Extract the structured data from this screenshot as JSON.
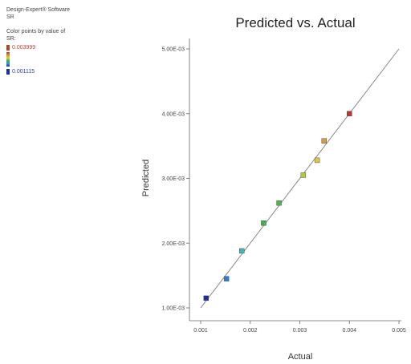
{
  "info": {
    "software": "Design-Expert® Software",
    "response": "SR",
    "color_caption": "Color points by value of",
    "color_variable": "SR:",
    "high_value": "0.003999",
    "low_value": "0.001115",
    "high_color": "#b5432a",
    "low_color": "#1d2aa0"
  },
  "chart_data": {
    "type": "scatter",
    "title": "Predicted vs. Actual",
    "xlabel": "Actual",
    "ylabel": "Predicted",
    "xlim": [
      0.001,
      0.005
    ],
    "ylim": [
      0.001,
      0.005
    ],
    "x_ticks": [
      0.001,
      0.002,
      0.003,
      0.004,
      0.005
    ],
    "x_tick_labels": [
      "0.001",
      "0.002",
      "0.003",
      "0.004",
      "0.005"
    ],
    "y_ticks": [
      0.001,
      0.002,
      0.003,
      0.004,
      0.005
    ],
    "y_tick_labels": [
      "1.00E-03",
      "2.00E-03",
      "3.00E-03",
      "4.00E-03",
      "5.00E-03"
    ],
    "grid": false,
    "reference_line": [
      [
        0.001,
        0.001
      ],
      [
        0.005,
        0.005
      ]
    ],
    "points": [
      {
        "x": 0.00111,
        "y": 0.00115,
        "color": "#1d2aa0"
      },
      {
        "x": 0.00152,
        "y": 0.00145,
        "color": "#2a7fd0"
      },
      {
        "x": 0.00183,
        "y": 0.00188,
        "color": "#3cb8b8"
      },
      {
        "x": 0.00227,
        "y": 0.00231,
        "color": "#3cb04a"
      },
      {
        "x": 0.00258,
        "y": 0.00262,
        "color": "#4bb848"
      },
      {
        "x": 0.00307,
        "y": 0.00305,
        "color": "#b8c83a"
      },
      {
        "x": 0.00335,
        "y": 0.00328,
        "color": "#e0c840"
      },
      {
        "x": 0.00349,
        "y": 0.00358,
        "color": "#d89a3a"
      },
      {
        "x": 0.004,
        "y": 0.004,
        "color": "#c0352a"
      }
    ]
  }
}
